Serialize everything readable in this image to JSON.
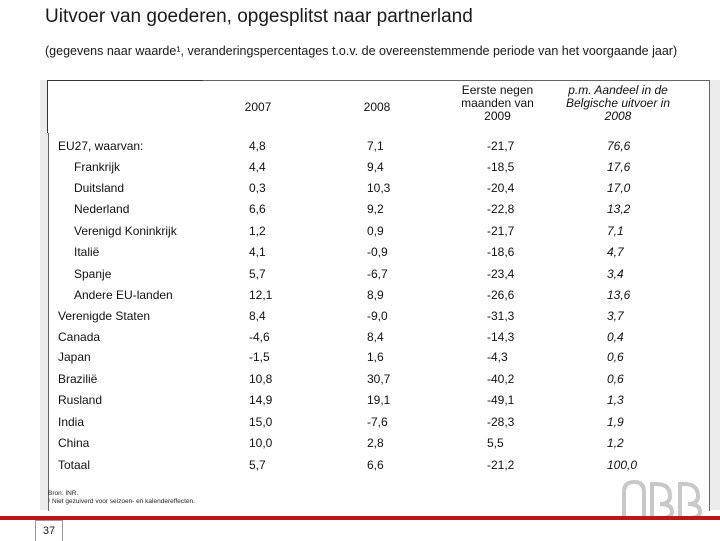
{
  "title": "Uitvoer van goederen, opgesplitst naar partnerland",
  "subtitle": "(gegevens naar waarde¹, veranderingspercentages t.o.v. de overeenstemmende periode van het voorgaande jaar)",
  "columns": {
    "c1": "2007",
    "c2": "2008",
    "c3": "Eerste negen maanden van 2009",
    "c4": "p.m. Aandeel in de Belgische uitvoer in 2008"
  },
  "rows": [
    {
      "label": "EU27, waarvan:",
      "v2007": "4,8",
      "v2008": "7,1",
      "v2009": "-21,7",
      "share": "76,6"
    },
    {
      "label": "Frankrijk",
      "v2007": "4,4",
      "v2008": "9,4",
      "v2009": "-18,5",
      "share": "17,6"
    },
    {
      "label": "Duitsland",
      "v2007": "0,3",
      "v2008": "10,3",
      "v2009": "-20,4",
      "share": "17,0"
    },
    {
      "label": "Nederland",
      "v2007": "6,6",
      "v2008": "9,2",
      "v2009": "-22,8",
      "share": "13,2"
    },
    {
      "label": "Verenigd Koninkrijk",
      "v2007": "1,2",
      "v2008": "0,9",
      "v2009": "-21,7",
      "share": "7,1"
    },
    {
      "label": "Italië",
      "v2007": "4,1",
      "v2008": "-0,9",
      "v2009": "-18,6",
      "share": "4,7"
    },
    {
      "label": "Spanje",
      "v2007": "5,7",
      "v2008": "-6,7",
      "v2009": "-23,4",
      "share": "3,4"
    },
    {
      "label": "Andere EU-landen",
      "v2007": "12,1",
      "v2008": "8,9",
      "v2009": "-26,6",
      "share": "13,6"
    },
    {
      "label": "Verenigde Staten",
      "v2007": "8,4",
      "v2008": "-9,0",
      "v2009": "-31,3",
      "share": "3,7"
    },
    {
      "label": "Canada",
      "v2007": "-4,6",
      "v2008": "8,4",
      "v2009": "-14,3",
      "share": "0,4"
    },
    {
      "label": "Japan",
      "v2007": "-1,5",
      "v2008": "1,6",
      "v2009": "-4,3",
      "share": "0,6"
    },
    {
      "label": "Brazilië",
      "v2007": "10,8",
      "v2008": "30,7",
      "v2009": "-40,2",
      "share": "0,6"
    },
    {
      "label": "Rusland",
      "v2007": "14,9",
      "v2008": "19,1",
      "v2009": "-49,1",
      "share": "1,3"
    },
    {
      "label": "India",
      "v2007": "15,0",
      "v2008": "-7,6",
      "v2009": "-28,3",
      "share": "1,9"
    },
    {
      "label": "China",
      "v2007": "10,0",
      "v2008": "2,8",
      "v2009": "5,5",
      "share": "1,2"
    },
    {
      "label": "Totaal",
      "v2007": "5,7",
      "v2008": "6,6",
      "v2009": "-21,2",
      "share": "100,0"
    }
  ],
  "source": {
    "line1": "Bron: INR.",
    "line2": "¹ Niet gezuiverd voor seizoen- en kalendereffecten."
  },
  "page_number": "37",
  "accent_color": "#c01418"
}
